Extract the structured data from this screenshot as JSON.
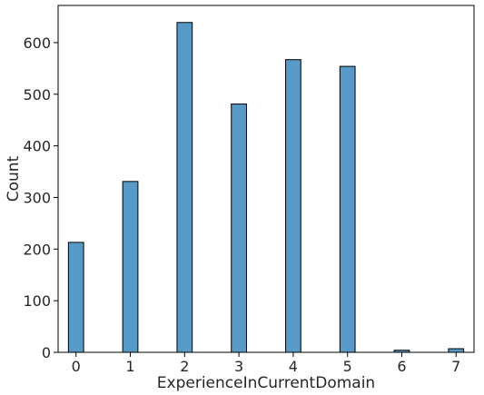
{
  "chart_data": {
    "type": "bar",
    "x": [
      0,
      1,
      2,
      3,
      4,
      5,
      6,
      7
    ],
    "values": [
      213,
      331,
      639,
      481,
      567,
      554,
      4,
      7
    ],
    "xlabel": "ExperienceInCurrentDomain",
    "ylabel": "Count",
    "xlim": [
      -0.33,
      7.33
    ],
    "ylim": [
      0,
      672
    ],
    "x_ticks": [
      "0",
      "1",
      "2",
      "3",
      "4",
      "5",
      "6",
      "7"
    ],
    "y_ticks": [
      "0",
      "100",
      "200",
      "300",
      "400",
      "500",
      "600"
    ],
    "grid": false,
    "legend": "none",
    "bar_color": "#5799c7"
  }
}
